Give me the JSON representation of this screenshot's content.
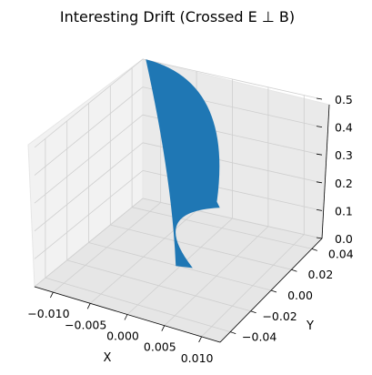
{
  "chart_data": {
    "type": "surface3d",
    "title": "Interesting Drift (Crossed E ⊥ B)",
    "xlabel": "X",
    "ylabel": "Y",
    "zlabel": "",
    "xlim": [
      -0.0125,
      0.0125
    ],
    "ylim": [
      -0.05,
      0.05
    ],
    "zlim": [
      0.0,
      0.5
    ],
    "x_ticks": [
      "−0.010",
      "−0.005",
      "0.000",
      "0.005",
      "0.010"
    ],
    "y_ticks": [
      "−0.04",
      "−0.02",
      "0.00",
      "0.02",
      "0.04"
    ],
    "z_ticks": [
      "0.0",
      "0.1",
      "0.2",
      "0.3",
      "0.4",
      "0.5"
    ],
    "grid": true,
    "surface_color": "#1f77b4",
    "surface_corners": {
      "top_left": {
        "x": -0.012,
        "y": 0.05,
        "z": 0.5
      },
      "top_right": {
        "x": 0.012,
        "y": -0.05,
        "z": 0.5
      },
      "bottom": {
        "x": 0.0,
        "y": 0.0,
        "z": 0.0
      }
    }
  }
}
